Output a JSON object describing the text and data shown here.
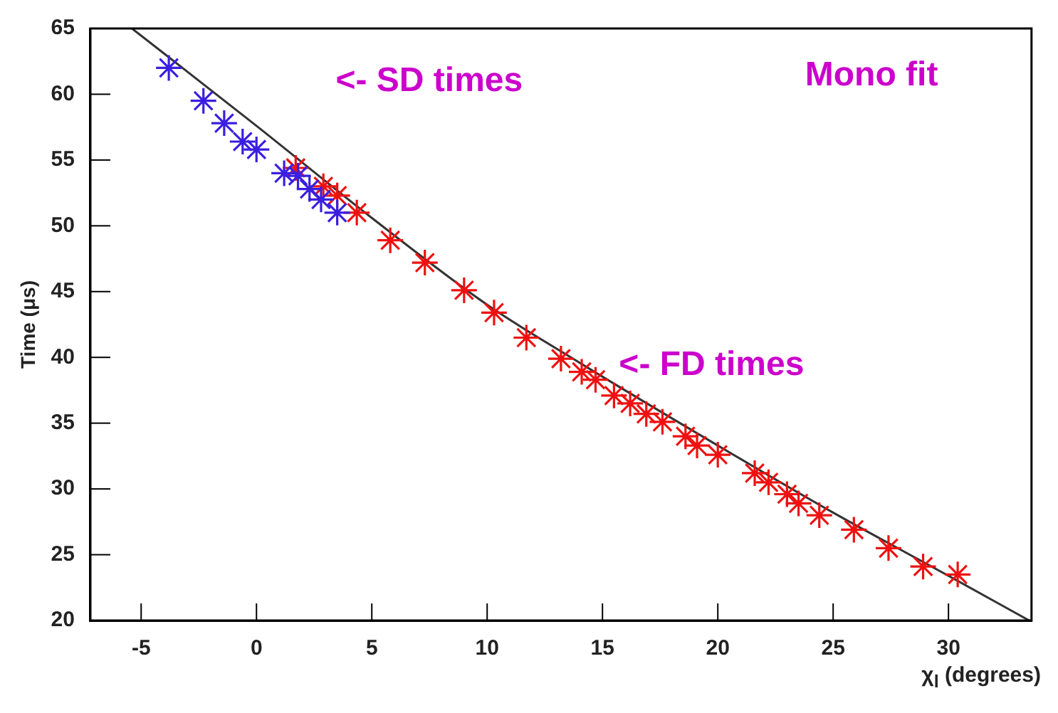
{
  "chart_data": {
    "type": "scatter",
    "ylabel": "Time (μs)",
    "xlabel": "χ$_{l}$ (degrees)",
    "xlim": [
      -7.2,
      33.6
    ],
    "xticks": [
      -5,
      0,
      5,
      10,
      15,
      20,
      25,
      30
    ],
    "ylim": [
      20,
      65
    ],
    "yticks": [
      20,
      25,
      30,
      35,
      40,
      45,
      50,
      55,
      60,
      65
    ],
    "grid": false,
    "legend": false,
    "marker": "cross",
    "annotations": [
      "Mono fit",
      "<- SD times",
      "<- FD times"
    ],
    "series": [
      {
        "type": "line",
        "color": "#333333",
        "marker": "none",
        "x": [
          -5.4,
          0,
          5,
          10,
          14,
          20,
          25,
          30,
          33.5
        ],
        "values": [
          65,
          57.6,
          50.6,
          44,
          39.6,
          33.3,
          28.2,
          23.4,
          20
        ]
      },
      {
        "color": "#3a1fe0",
        "x": [
          -3.8,
          -2.3,
          -1.4,
          -0.6,
          0,
          1.2,
          1.8,
          2.3,
          2.8,
          3.5
        ],
        "values": [
          62,
          59.5,
          57.8,
          56.4,
          55.8,
          54,
          53.8,
          52.8,
          52,
          51
        ]
      },
      {
        "color": "#ee1111",
        "x": [
          1.7,
          2.9,
          3.5,
          4.35,
          5.8,
          7.3,
          9.0,
          10.3,
          11.7,
          13.2,
          14.1,
          14.7,
          15.5,
          16.2,
          16.9,
          17.6,
          18.6,
          19.1,
          20.0,
          21.6,
          22.2,
          23.0,
          23.5,
          24.4,
          25.9,
          27.4,
          28.9,
          30.4
        ],
        "values": [
          54.4,
          53,
          52.3,
          51,
          48.9,
          47.2,
          45.1,
          43.4,
          41.5,
          39.9,
          38.9,
          38.3,
          37.1,
          36.5,
          35.7,
          35.1,
          34,
          33.3,
          32.6,
          31.2,
          30.5,
          29.6,
          28.9,
          28,
          26.9,
          25.5,
          24.1,
          23.5
        ]
      }
    ]
  }
}
